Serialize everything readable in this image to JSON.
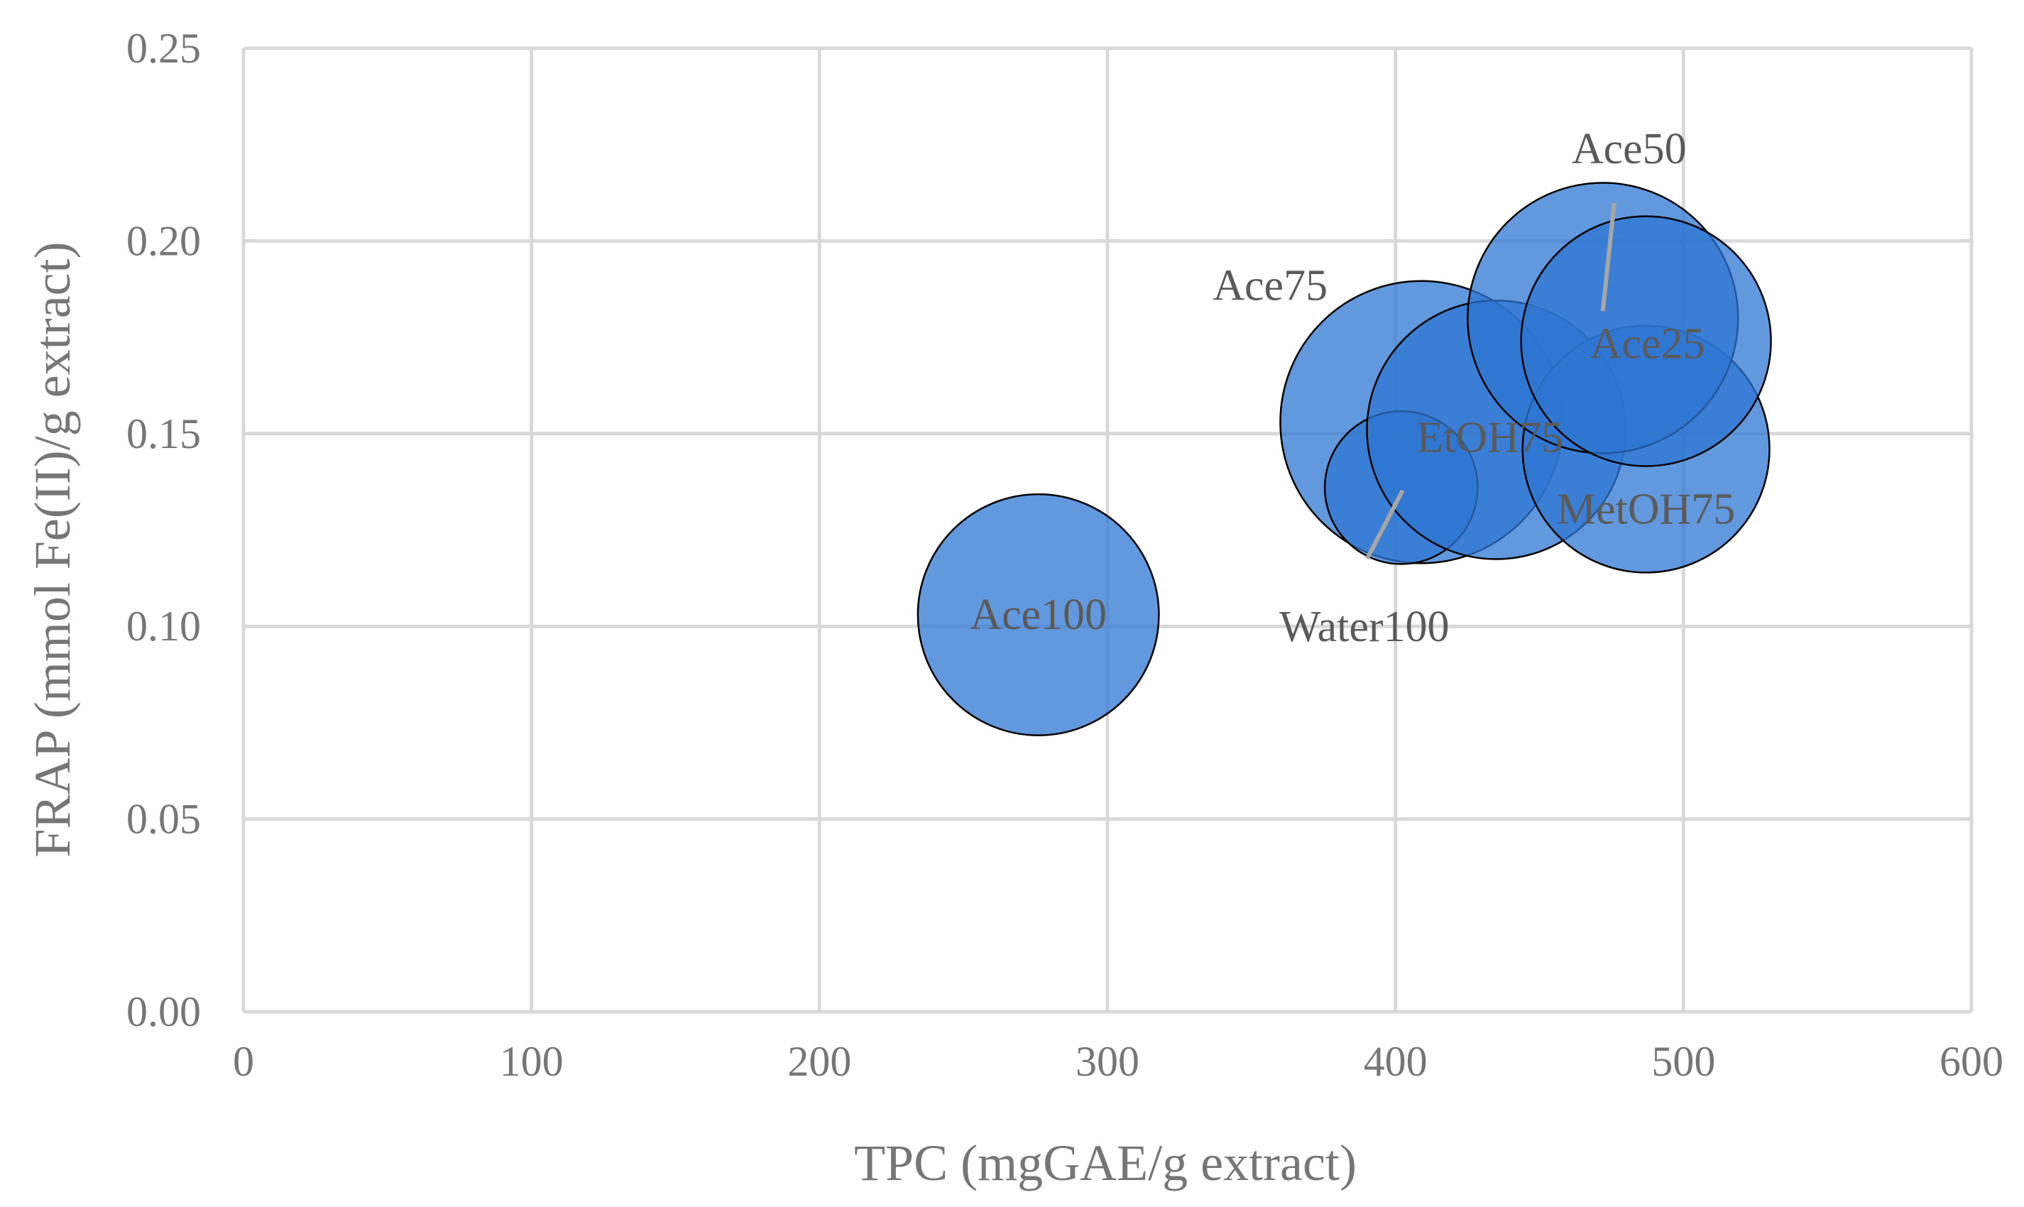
{
  "chart_data": {
    "type": "bubble",
    "title": "",
    "xlabel": "TPC (mgGAE/g extract)",
    "ylabel": "FRAP (mmol Fe(II)/g extract)",
    "xlim": [
      0,
      600
    ],
    "ylim": [
      0,
      0.25
    ],
    "x_ticks": [
      "0",
      "100",
      "200",
      "300",
      "400",
      "500",
      "600"
    ],
    "y_ticks": [
      "0.00",
      "0.05",
      "0.10",
      "0.15",
      "0.20",
      "0.25"
    ],
    "grid": true,
    "legend": "none",
    "bubble_color": "#2e75d2",
    "bubble_opacity": 0.75,
    "points": [
      {
        "label": "Ace100",
        "x": 276,
        "y": 0.103,
        "size": 82
      },
      {
        "label": "Ace75",
        "x": 409,
        "y": 0.153,
        "size": 96
      },
      {
        "label": "Water100",
        "x": 402,
        "y": 0.136,
        "size": 52
      },
      {
        "label": "EtOH75",
        "x": 435,
        "y": 0.151,
        "size": 88
      },
      {
        "label": "MetOH75",
        "x": 487,
        "y": 0.146,
        "size": 84
      },
      {
        "label": "Ace50",
        "x": 472,
        "y": 0.18,
        "size": 92
      },
      {
        "label": "Ace25",
        "x": 487,
        "y": 0.174,
        "size": 85
      }
    ]
  }
}
